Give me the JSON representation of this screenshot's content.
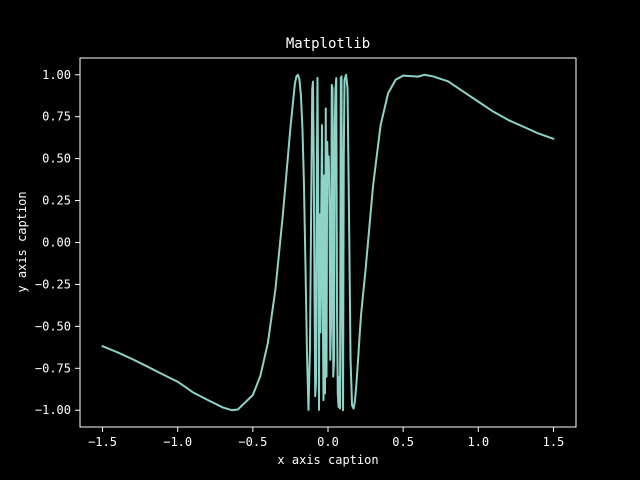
{
  "chart_data": {
    "type": "line",
    "title": "Matplotlib",
    "xlabel": "x axis caption",
    "ylabel": "y axis caption",
    "xlim": [
      -1.65,
      1.65
    ],
    "ylim": [
      -1.1,
      1.1
    ],
    "grid": false,
    "background": "#000000",
    "foreground": "#ffffff",
    "xticks": [
      -1.5,
      -1.0,
      -0.5,
      0.0,
      0.5,
      1.0,
      1.5
    ],
    "xtick_labels": [
      "−1.5",
      "−1.0",
      "−0.5",
      "0.0",
      "0.5",
      "1.0",
      "1.5"
    ],
    "yticks": [
      -1.0,
      -0.75,
      -0.5,
      -0.25,
      0.0,
      0.25,
      0.5,
      0.75,
      1.0
    ],
    "ytick_labels": [
      "−1.00",
      "−0.75",
      "−0.50",
      "−0.25",
      "0.00",
      "0.25",
      "0.50",
      "0.75",
      "1.00"
    ],
    "series": [
      {
        "color": "#8dd3c7",
        "x": [
          -1.5,
          -1.4,
          -1.3,
          -1.2,
          -1.1,
          -1.0,
          -0.9,
          -0.8,
          -0.7,
          -0.64,
          -0.6,
          -0.5,
          -0.45,
          -0.4,
          -0.35,
          -0.3,
          -0.25,
          -0.22,
          -0.21,
          -0.2,
          -0.19,
          -0.18,
          -0.17,
          -0.16,
          -0.15,
          -0.14,
          -0.13,
          -0.12,
          -0.11,
          -0.105,
          -0.1,
          -0.095,
          -0.09,
          -0.085,
          -0.08,
          -0.075,
          -0.07,
          -0.065,
          -0.06,
          -0.055,
          -0.05,
          -0.045,
          -0.04,
          -0.035,
          -0.03,
          -0.025,
          -0.02,
          -0.015,
          -0.01,
          -0.005,
          0.0,
          0.005,
          0.01,
          0.015,
          0.02,
          0.025,
          0.03,
          0.035,
          0.04,
          0.045,
          0.05,
          0.055,
          0.06,
          0.065,
          0.07,
          0.075,
          0.08,
          0.085,
          0.09,
          0.095,
          0.1,
          0.105,
          0.11,
          0.12,
          0.13,
          0.14,
          0.15,
          0.16,
          0.17,
          0.18,
          0.19,
          0.2,
          0.21,
          0.22,
          0.25,
          0.3,
          0.35,
          0.4,
          0.45,
          0.5,
          0.6,
          0.64,
          0.7,
          0.8,
          0.9,
          1.0,
          1.1,
          1.2,
          1.3,
          1.4,
          1.5
        ],
        "y": [
          -0.6184,
          -0.6551,
          -0.6961,
          -0.7403,
          -0.7862,
          -0.8301,
          -0.8925,
          -0.9391,
          -0.9834,
          -1.0,
          -0.9959,
          -0.9093,
          -0.7952,
          -0.5985,
          -0.2804,
          0.1675,
          0.6846,
          0.9493,
          0.9905,
          0.9995,
          0.9709,
          0.8745,
          0.6775,
          0.3492,
          -0.132,
          -0.6534,
          -0.9985,
          -0.6378,
          0.4071,
          0.915,
          0.9589,
          0.5127,
          -0.2617,
          -0.9166,
          -0.836,
          0.3162,
          0.9816,
          0.2462,
          -0.9981,
          0.1675,
          -0.5365,
          0.1675,
          0.7,
          -0.3,
          -0.94,
          0.4,
          -0.9,
          0.8,
          -0.8,
          0.6,
          0.4,
          0.5127,
          0.2,
          -0.7,
          -0.5,
          0.94,
          0.92,
          -0.8,
          -0.7,
          0.7,
          0.92,
          0.98,
          -0.4,
          -0.9,
          -0.98,
          -0.8,
          -0.99,
          0.98,
          0.99,
          -0.5,
          -1.0,
          0.52,
          0.97,
          1.0,
          0.92,
          0.15,
          -0.7,
          -0.97,
          -0.99,
          -0.94,
          -0.83,
          -0.7,
          -0.56,
          -0.43,
          -0.16,
          0.34,
          0.7,
          0.89,
          0.97,
          0.995,
          0.989,
          1.0,
          0.99,
          0.96,
          0.9,
          0.84,
          0.78,
          0.73,
          0.69,
          0.65,
          0.6184
        ]
      }
    ]
  }
}
